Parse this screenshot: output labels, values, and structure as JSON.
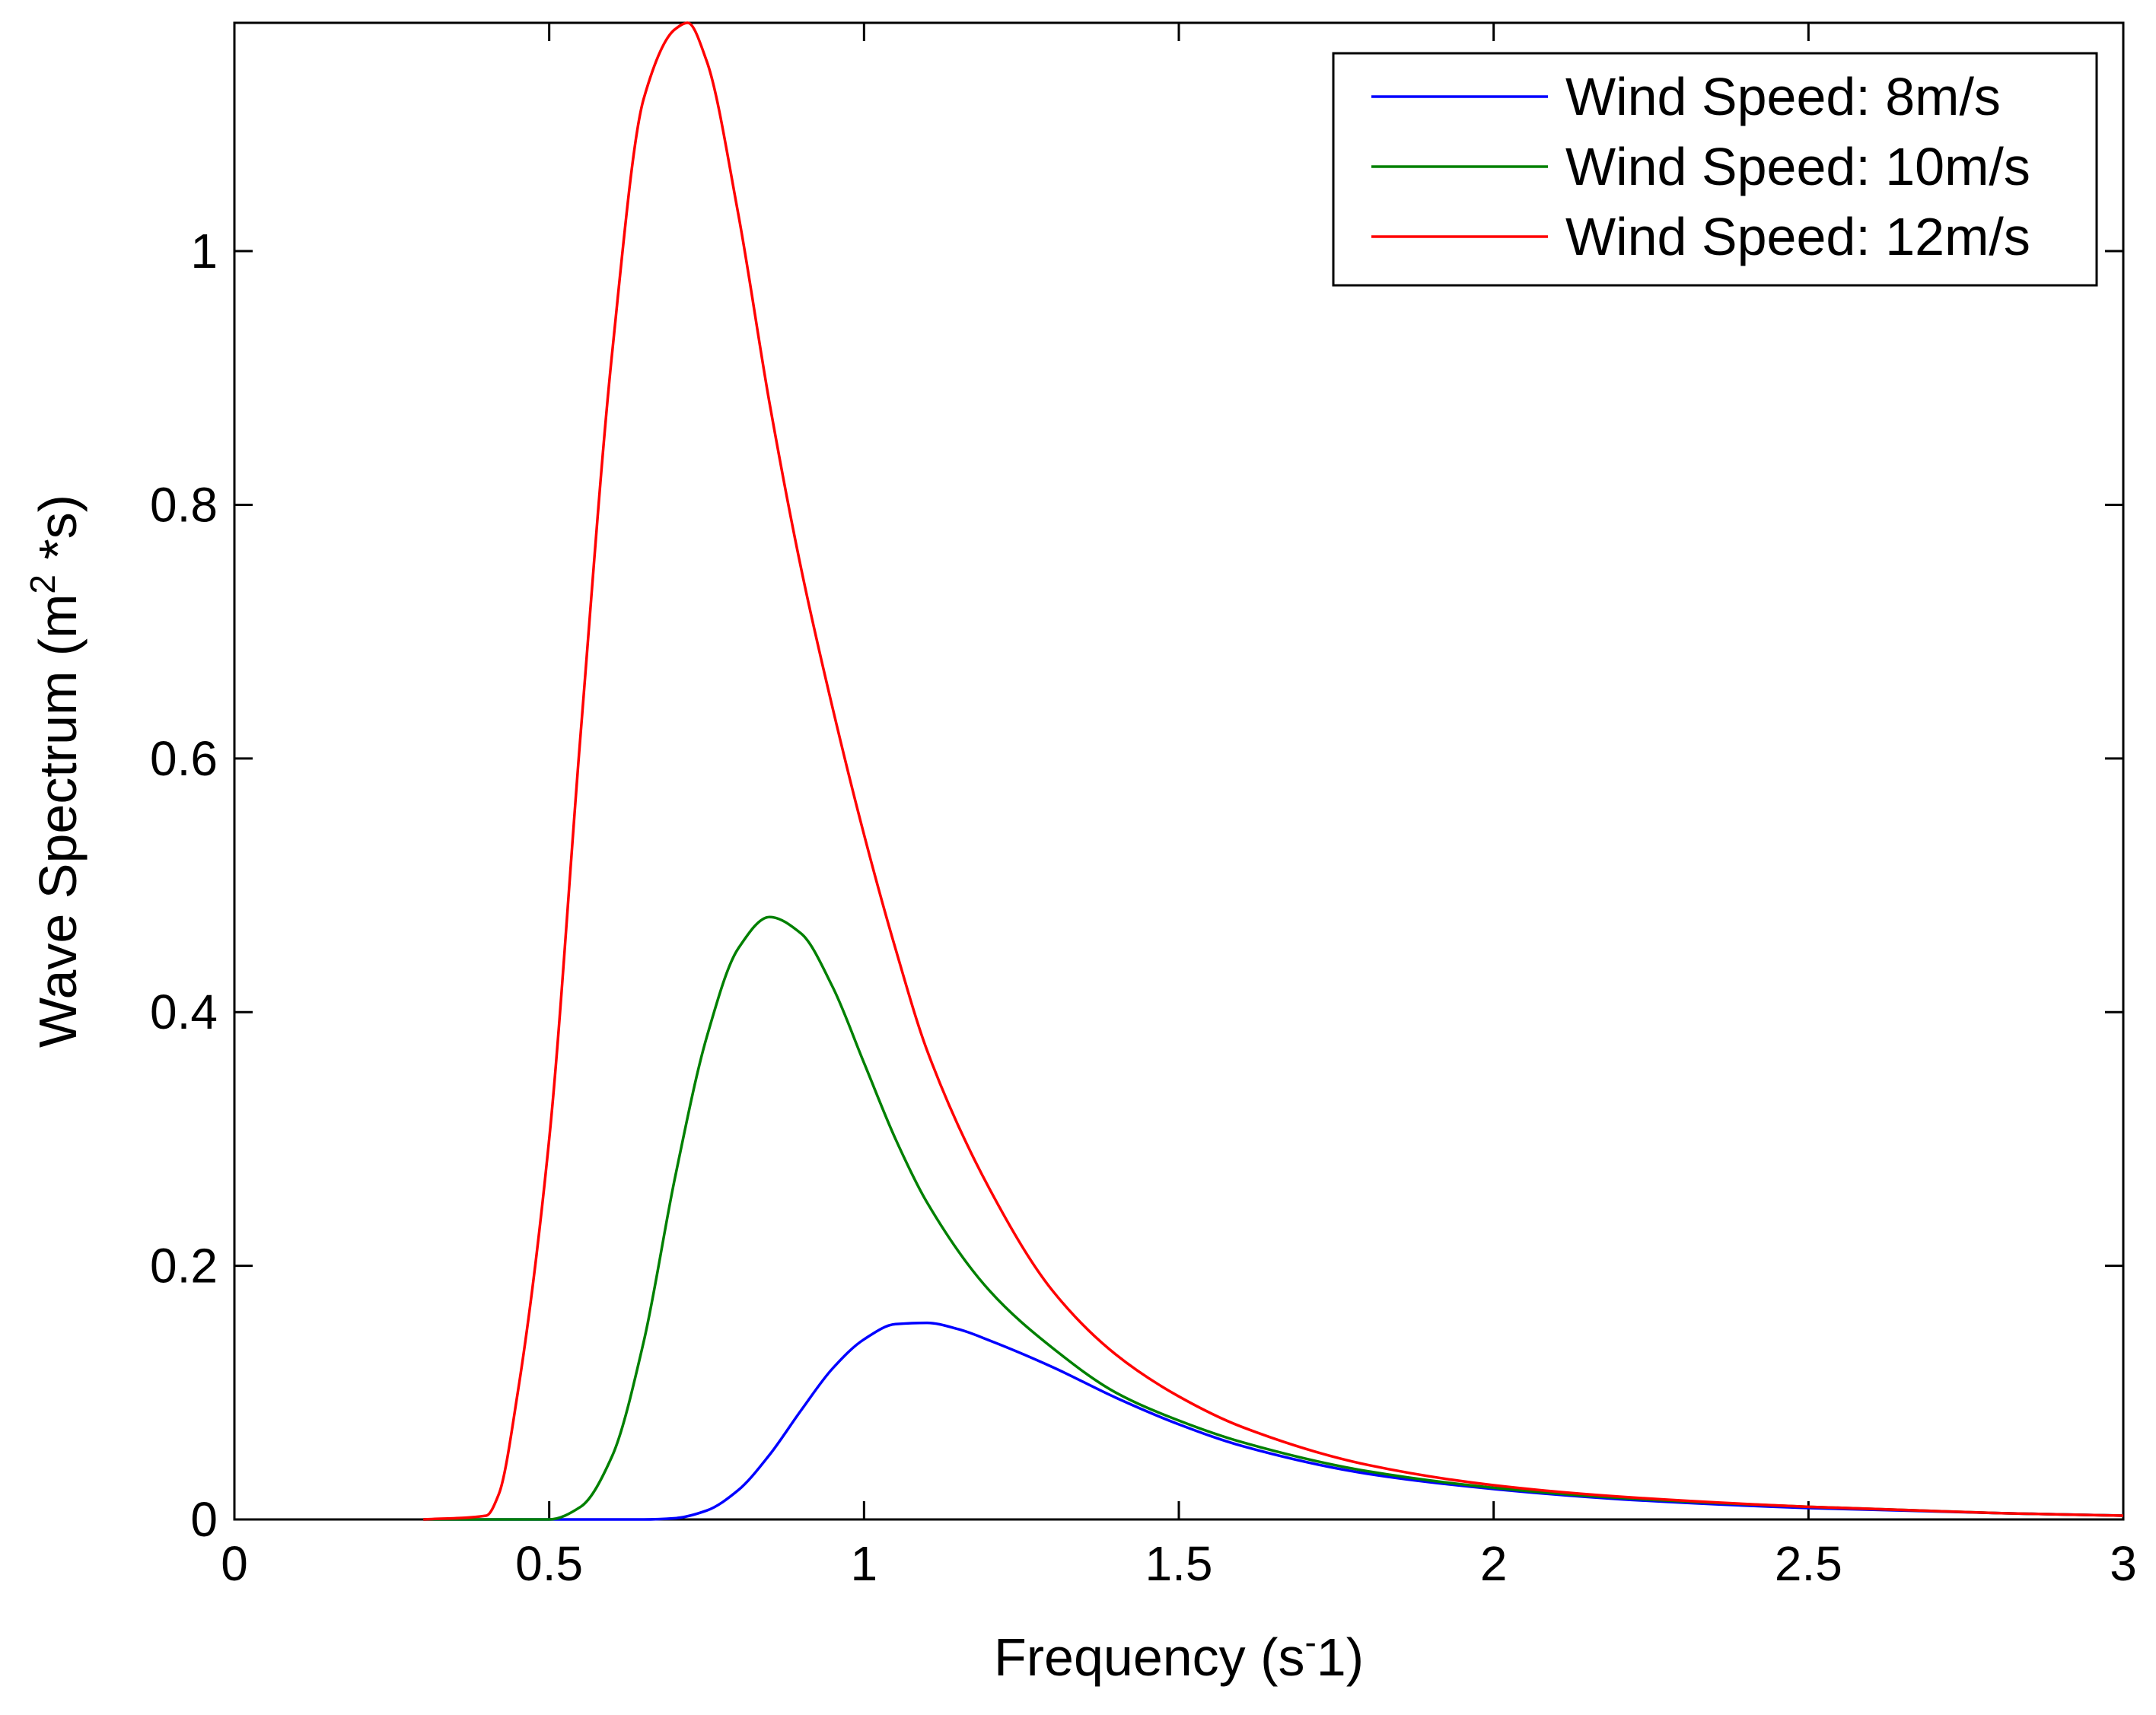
{
  "chart_data": {
    "type": "line",
    "title": "",
    "xlabel": "Frequency",
    "xlabel_units": {
      "open": "(s",
      "sup": "-",
      "close": "1)"
    },
    "ylabel": "Wave Spectrum",
    "ylabel_units": {
      "open": "(m",
      "sup": "2",
      "close": " *s)"
    },
    "xlim": [
      0,
      3
    ],
    "ylim": [
      0,
      1.18
    ],
    "xticks": [
      {
        "value": 0,
        "label": "0"
      },
      {
        "value": 0.5,
        "label": "0.5"
      },
      {
        "value": 1,
        "label": "1"
      },
      {
        "value": 1.5,
        "label": "1.5"
      },
      {
        "value": 2,
        "label": "2"
      },
      {
        "value": 2.5,
        "label": "2.5"
      },
      {
        "value": 3,
        "label": "3"
      }
    ],
    "yticks": [
      {
        "value": 0,
        "label": "0"
      },
      {
        "value": 0.2,
        "label": "0.2"
      },
      {
        "value": 0.4,
        "label": "0.4"
      },
      {
        "value": 0.6,
        "label": "0.6"
      },
      {
        "value": 0.8,
        "label": "0.8"
      },
      {
        "value": 1,
        "label": "1"
      }
    ],
    "grid": false,
    "legend_position": "top-right",
    "series": [
      {
        "name": "Wind Speed: 8m/s",
        "color": "#0000ff",
        "x": [
          0.3,
          0.5,
          0.6,
          0.65,
          0.7,
          0.75,
          0.8,
          0.85,
          0.9,
          0.95,
          1.0,
          1.05,
          1.1,
          1.15,
          1.2,
          1.3,
          1.4,
          1.5,
          1.6,
          1.8,
          2.0,
          2.2,
          2.5,
          2.8,
          3.0
        ],
        "y": [
          0.0,
          0.0,
          0.0,
          0.0,
          0.001,
          0.007,
          0.023,
          0.051,
          0.086,
          0.119,
          0.142,
          0.154,
          0.155,
          0.15,
          0.141,
          0.12,
          0.096,
          0.075,
          0.058,
          0.036,
          0.024,
          0.016,
          0.009,
          0.005,
          0.003
        ]
      },
      {
        "name": "Wind Speed: 10m/s",
        "color": "#008000",
        "x": [
          0.3,
          0.5,
          0.55,
          0.6,
          0.65,
          0.7,
          0.75,
          0.8,
          0.85,
          0.9,
          0.95,
          1.0,
          1.05,
          1.1,
          1.2,
          1.3,
          1.4,
          1.5,
          1.6,
          1.8,
          2.0,
          2.2,
          2.5,
          2.8,
          3.0
        ],
        "y": [
          0.0,
          0.0,
          0.01,
          0.05,
          0.14,
          0.27,
          0.38,
          0.45,
          0.475,
          0.462,
          0.42,
          0.36,
          0.3,
          0.25,
          0.18,
          0.135,
          0.1,
          0.078,
          0.061,
          0.038,
          0.025,
          0.017,
          0.01,
          0.005,
          0.003
        ]
      },
      {
        "name": "Wind Speed: 12m/s",
        "color": "#ff0000",
        "x": [
          0.3,
          0.4,
          0.42,
          0.45,
          0.5,
          0.55,
          0.6,
          0.65,
          0.7,
          0.72,
          0.75,
          0.8,
          0.85,
          0.9,
          0.95,
          1.0,
          1.05,
          1.1,
          1.2,
          1.3,
          1.4,
          1.5,
          1.6,
          1.8,
          2.0,
          2.2,
          2.5,
          2.8,
          3.0
        ],
        "y": [
          0.0,
          0.003,
          0.02,
          0.1,
          0.3,
          0.62,
          0.92,
          1.12,
          1.175,
          1.18,
          1.15,
          1.03,
          0.88,
          0.75,
          0.64,
          0.54,
          0.45,
          0.37,
          0.26,
          0.18,
          0.13,
          0.097,
          0.073,
          0.043,
          0.027,
          0.018,
          0.01,
          0.005,
          0.003
        ]
      }
    ]
  }
}
